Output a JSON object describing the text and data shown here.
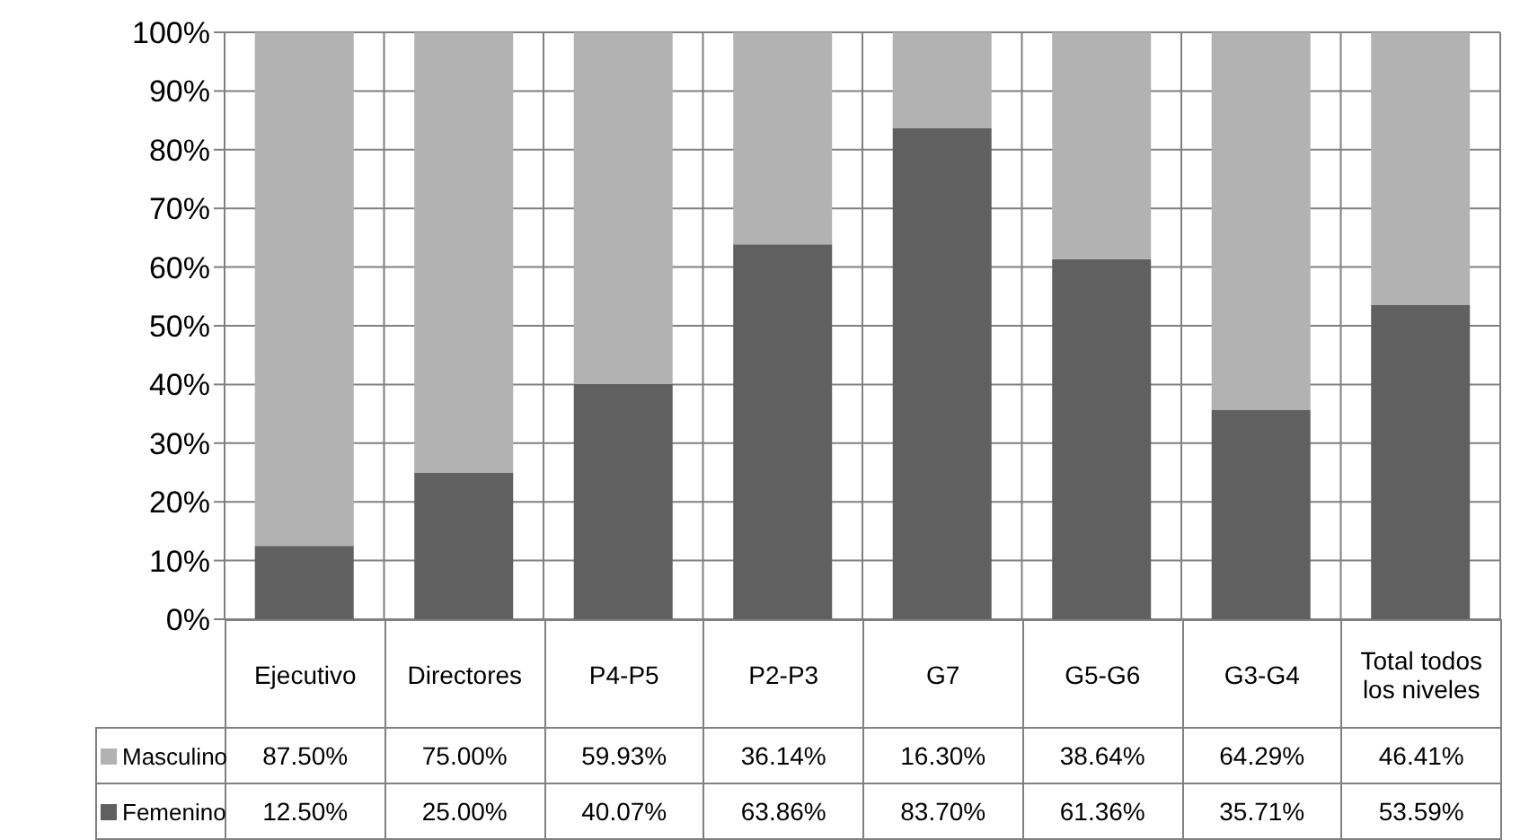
{
  "chart_data": {
    "type": "bar",
    "stacked": true,
    "categories": [
      "Ejecutivo",
      "Directores",
      "P4-P5",
      "P2-P3",
      "G7",
      "G5-G6",
      "G3-G4",
      "Total todos los niveles"
    ],
    "series": [
      {
        "name": "Femenino",
        "color": "#606060",
        "values": [
          12.5,
          25,
          40.07,
          63.86,
          83.7,
          61.36,
          35.71,
          53.59
        ],
        "value_labels": [
          "12.50%",
          "25.00%",
          "40.07%",
          "63.86%",
          "83.70%",
          "61.36%",
          "35.71%",
          "53.59%"
        ]
      },
      {
        "name": "Masculino",
        "color": "#b2b2b2",
        "values": [
          87.5,
          75,
          59.93,
          36.14,
          16.3,
          38.64,
          64.29,
          46.41
        ],
        "value_labels": [
          "87.50%",
          "75.00%",
          "59.93%",
          "36.14%",
          "16.30%",
          "38.64%",
          "64.29%",
          "46.41%"
        ]
      }
    ],
    "ylim": [
      0,
      100
    ],
    "yticks": [
      {
        "value": 0,
        "label": "0%"
      },
      {
        "value": 10,
        "label": "10%"
      },
      {
        "value": 20,
        "label": "20%"
      },
      {
        "value": 30,
        "label": "30%"
      },
      {
        "value": 40,
        "label": "40%"
      },
      {
        "value": 50,
        "label": "50%"
      },
      {
        "value": 60,
        "label": "60%"
      },
      {
        "value": 70,
        "label": "70%"
      },
      {
        "value": 80,
        "label": "80%"
      },
      {
        "value": 90,
        "label": "90%"
      },
      {
        "value": 100,
        "label": "100%"
      }
    ],
    "grid": true,
    "legend": "bottom"
  }
}
